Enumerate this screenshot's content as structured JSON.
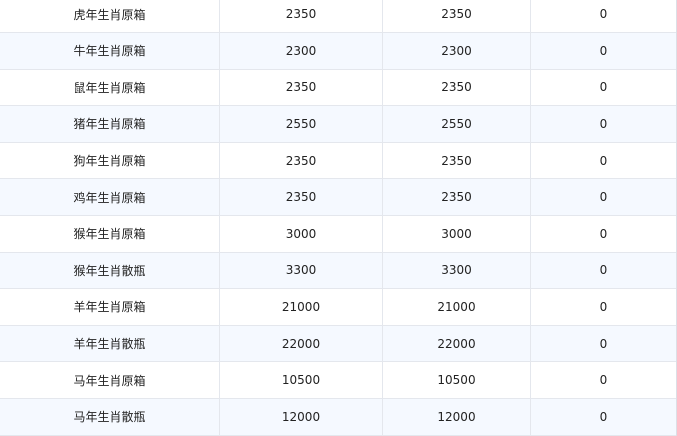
{
  "rows": [
    [
      "虎年生肖原箱",
      "2350",
      "2350",
      "0"
    ],
    [
      "牛年生肖原箱",
      "2300",
      "2300",
      "0"
    ],
    [
      "鼠年生肖原箱",
      "2350",
      "2350",
      "0"
    ],
    [
      "猪年生肖原箱",
      "2550",
      "2550",
      "0"
    ],
    [
      "狗年生肖原箱",
      "2350",
      "2350",
      "0"
    ],
    [
      "鸡年生肖原箱",
      "2350",
      "2350",
      "0"
    ],
    [
      "猴年生肖原箱",
      "3000",
      "3000",
      "0"
    ],
    [
      "猴年生肖散瓶",
      "3300",
      "3300",
      "0"
    ],
    [
      "羊年生肖原箱",
      "21000",
      "21000",
      "0"
    ],
    [
      "羊年生肖散瓶",
      "22000",
      "22000",
      "0"
    ],
    [
      "马年生肖原箱",
      "10500",
      "10500",
      "0"
    ],
    [
      "马年生肖散瓶",
      "12000",
      "12000",
      "0"
    ]
  ]
}
